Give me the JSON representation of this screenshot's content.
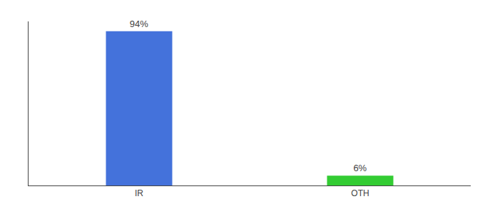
{
  "chart_data": {
    "type": "bar",
    "categories": [
      "IR",
      "OTH"
    ],
    "values": [
      94,
      6
    ],
    "value_labels": [
      "94%",
      "6%"
    ],
    "colors": [
      "#4472db",
      "#33cc33"
    ],
    "ylim": [
      0,
      100
    ],
    "data_labels": true,
    "tick_labels": "x",
    "grid": false
  }
}
